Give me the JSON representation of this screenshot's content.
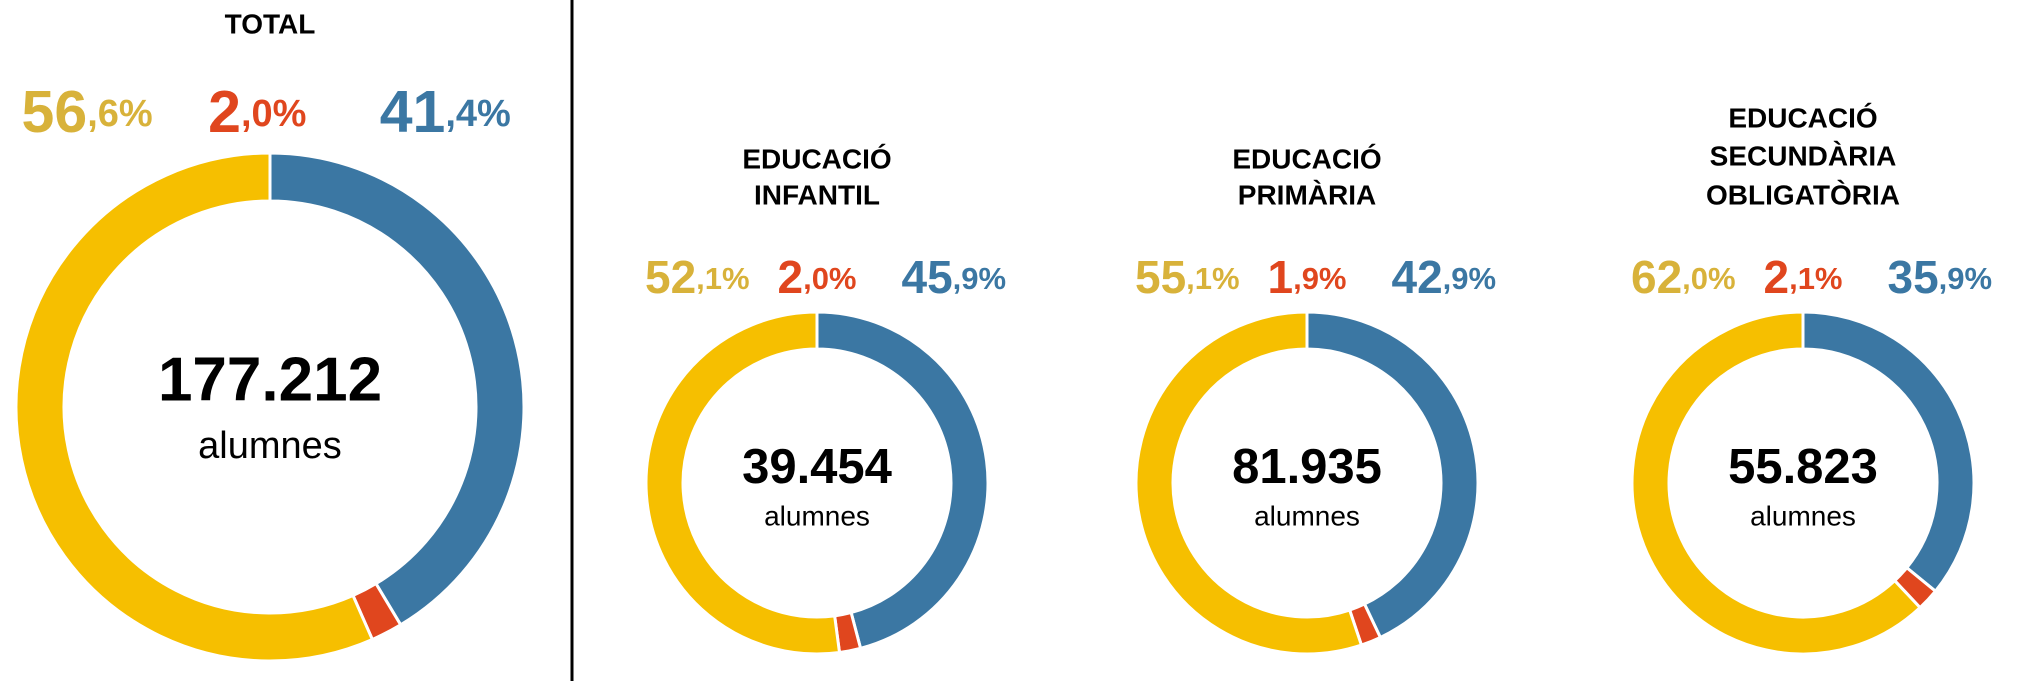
{
  "chart_data": [
    {
      "type": "donut",
      "title": [
        "TOTAL"
      ],
      "total": {
        "value": 177212,
        "label": "177.212"
      },
      "unit": "alumnes",
      "values": [
        41.4,
        2.0,
        56.6
      ],
      "value_labels": [
        "41,4%",
        "2,0%",
        "56,6%"
      ],
      "colors": [
        "#3b77a3",
        "#e0461e",
        "#f6bf00"
      ],
      "label_colors": [
        "#3b77a3",
        "#e0461e",
        "#d8b23a"
      ]
    },
    {
      "type": "donut",
      "title": [
        "EDUCACIÓ",
        "INFANTIL"
      ],
      "total": {
        "value": 39454,
        "label": "39.454"
      },
      "unit": "alumnes",
      "values": [
        45.9,
        2.0,
        52.1
      ],
      "value_labels": [
        "45,9%",
        "2,0%",
        "52,1%"
      ],
      "colors": [
        "#3b77a3",
        "#e0461e",
        "#f6bf00"
      ],
      "label_colors": [
        "#3b77a3",
        "#e0461e",
        "#d8b23a"
      ]
    },
    {
      "type": "donut",
      "title": [
        "EDUCACIÓ",
        "PRIMÀRIA"
      ],
      "total": {
        "value": 81935,
        "label": "81.935"
      },
      "unit": "alumnes",
      "values": [
        42.9,
        1.9,
        55.1
      ],
      "value_labels": [
        "42,9%",
        "1,9%",
        "55,1%"
      ],
      "colors": [
        "#3b77a3",
        "#e0461e",
        "#f6bf00"
      ],
      "label_colors": [
        "#3b77a3",
        "#e0461e",
        "#d8b23a"
      ]
    },
    {
      "type": "donut",
      "title": [
        "EDUCACIÓ",
        "SECUNDÀRIA",
        "OBLIGATÒRIA"
      ],
      "total": {
        "value": 55823,
        "label": "55.823"
      },
      "unit": "alumnes",
      "values": [
        35.9,
        2.1,
        62.0
      ],
      "value_labels": [
        "35,9%",
        "2,1%",
        "62,0%"
      ],
      "colors": [
        "#3b77a3",
        "#e0461e",
        "#f6bf00"
      ],
      "label_colors": [
        "#3b77a3",
        "#e0461e",
        "#d8b23a"
      ]
    }
  ]
}
